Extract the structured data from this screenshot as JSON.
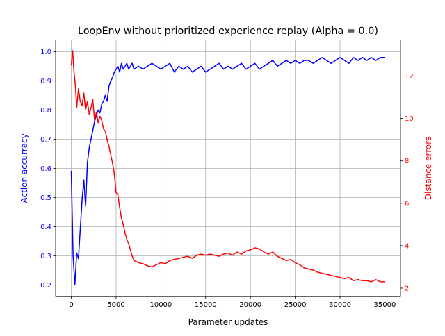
{
  "chart_data": {
    "type": "line",
    "title": "LoopEnv without prioritized experience replay (Alpha = 0.0)",
    "xlabel": "Parameter updates",
    "ylabel_left": "Action accurracy",
    "ylabel_right": "Distance errors",
    "xlim": [
      -1750,
      36750
    ],
    "ylim_left": [
      0.16,
      1.04
    ],
    "ylim_right": [
      1.6,
      13.7
    ],
    "x_ticks": [
      0,
      5000,
      10000,
      15000,
      20000,
      25000,
      30000,
      35000
    ],
    "y_left_ticks": [
      0.2,
      0.3,
      0.4,
      0.5,
      0.6,
      0.7,
      0.8,
      0.9,
      1.0
    ],
    "y_right_ticks": [
      2,
      4,
      6,
      8,
      10,
      12
    ],
    "grid": true,
    "series": [
      {
        "axis": "left",
        "color": "#0000ff",
        "x": [
          0,
          200,
          400,
          600,
          800,
          1000,
          1200,
          1400,
          1600,
          1800,
          2000,
          2200,
          2400,
          2600,
          2800,
          3000,
          3200,
          3400,
          3600,
          3800,
          4000,
          4200,
          4400,
          4600,
          4800,
          5000,
          5200,
          5400,
          5600,
          5800,
          6000,
          6200,
          6400,
          6600,
          6800,
          7000,
          7500,
          8000,
          8500,
          9000,
          9500,
          10000,
          10500,
          11000,
          11500,
          12000,
          12500,
          13000,
          13500,
          14000,
          14500,
          15000,
          15500,
          16000,
          16500,
          17000,
          17500,
          18000,
          18500,
          19000,
          19500,
          20000,
          20500,
          21000,
          21500,
          22000,
          22500,
          23000,
          23500,
          24000,
          24500,
          25000,
          25500,
          26000,
          26500,
          27000,
          27500,
          28000,
          28500,
          29000,
          29500,
          30000,
          30500,
          31000,
          31500,
          32000,
          32500,
          33000,
          33500,
          34000,
          34500,
          35000
        ],
        "values": [
          0.59,
          0.3,
          0.2,
          0.31,
          0.29,
          0.39,
          0.49,
          0.56,
          0.47,
          0.62,
          0.67,
          0.7,
          0.73,
          0.76,
          0.78,
          0.8,
          0.79,
          0.82,
          0.83,
          0.85,
          0.83,
          0.88,
          0.9,
          0.91,
          0.93,
          0.94,
          0.95,
          0.93,
          0.96,
          0.94,
          0.95,
          0.96,
          0.94,
          0.95,
          0.96,
          0.94,
          0.95,
          0.94,
          0.95,
          0.96,
          0.95,
          0.94,
          0.95,
          0.96,
          0.93,
          0.95,
          0.94,
          0.95,
          0.93,
          0.94,
          0.95,
          0.93,
          0.94,
          0.95,
          0.96,
          0.94,
          0.95,
          0.94,
          0.95,
          0.96,
          0.94,
          0.95,
          0.96,
          0.94,
          0.95,
          0.96,
          0.97,
          0.95,
          0.96,
          0.97,
          0.96,
          0.97,
          0.96,
          0.97,
          0.97,
          0.96,
          0.97,
          0.98,
          0.97,
          0.96,
          0.97,
          0.98,
          0.97,
          0.96,
          0.98,
          0.97,
          0.98,
          0.97,
          0.98,
          0.97,
          0.98,
          0.98
        ]
      },
      {
        "axis": "right",
        "color": "#ff0000",
        "x": [
          0,
          150,
          300,
          450,
          600,
          800,
          1000,
          1200,
          1400,
          1600,
          1800,
          2000,
          2200,
          2400,
          2600,
          2800,
          3000,
          3200,
          3400,
          3600,
          3800,
          4000,
          4200,
          4400,
          4600,
          4800,
          5000,
          5200,
          5400,
          5600,
          5800,
          6000,
          6200,
          6400,
          6600,
          6800,
          7000,
          7500,
          8000,
          8500,
          9000,
          9500,
          10000,
          10500,
          11000,
          11500,
          12000,
          12500,
          13000,
          13500,
          14000,
          14500,
          15000,
          15500,
          16000,
          16500,
          17000,
          17500,
          18000,
          18500,
          19000,
          19500,
          20000,
          20500,
          21000,
          21500,
          22000,
          22500,
          23000,
          23500,
          24000,
          24500,
          25000,
          25500,
          26000,
          26500,
          27000,
          27500,
          28000,
          28500,
          29000,
          29500,
          30000,
          30500,
          31000,
          31500,
          32000,
          32500,
          33000,
          33500,
          34000,
          34500,
          35000
        ],
        "values": [
          12.5,
          13.2,
          12.2,
          11.6,
          10.5,
          11.4,
          10.8,
          10.6,
          11.2,
          10.4,
          10.8,
          10.2,
          10.5,
          10.9,
          9.9,
          10.3,
          9.8,
          10.1,
          9.9,
          9.5,
          9.4,
          9.0,
          8.7,
          8.3,
          7.9,
          7.4,
          6.5,
          6.4,
          5.8,
          5.3,
          5.0,
          4.6,
          4.3,
          4.1,
          3.8,
          3.5,
          3.3,
          3.2,
          3.15,
          3.05,
          3.0,
          3.1,
          3.2,
          3.15,
          3.3,
          3.35,
          3.4,
          3.45,
          3.5,
          3.4,
          3.55,
          3.6,
          3.55,
          3.6,
          3.55,
          3.5,
          3.6,
          3.65,
          3.55,
          3.7,
          3.6,
          3.75,
          3.8,
          3.9,
          3.85,
          3.7,
          3.6,
          3.7,
          3.5,
          3.4,
          3.3,
          3.35,
          3.2,
          3.1,
          2.95,
          2.9,
          2.85,
          2.75,
          2.7,
          2.65,
          2.6,
          2.55,
          2.5,
          2.45,
          2.5,
          2.35,
          2.4,
          2.35,
          2.35,
          2.3,
          2.4,
          2.3,
          2.3
        ]
      }
    ]
  }
}
